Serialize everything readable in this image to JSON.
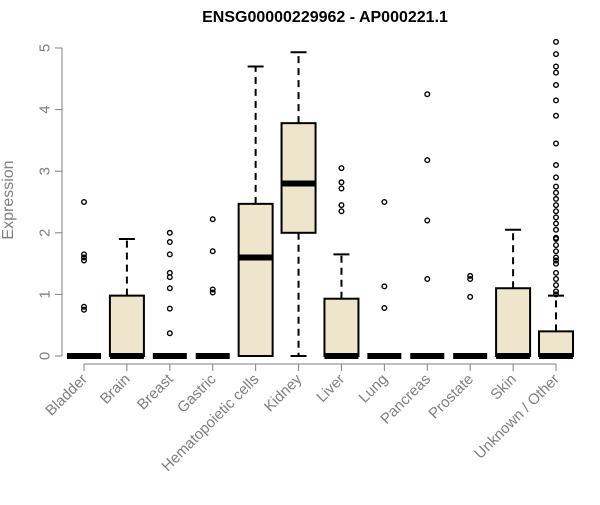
{
  "chart_data": {
    "type": "box",
    "title": "ENSG00000229962 - AP000221.1",
    "ylabel": "Expression",
    "xlabel": "",
    "ylim": [
      0,
      5.1
    ],
    "yticks": [
      0,
      1,
      2,
      3,
      4,
      5
    ],
    "grid": false,
    "legend": "none",
    "colors": {
      "box_fill": "#ede6cc",
      "box_stroke": "#000000",
      "axis": "#7f7f7f",
      "title": "#000000"
    },
    "categories": [
      "Bladder",
      "Brain",
      "Breast",
      "Gastric",
      "Hematopoietic cells",
      "Kidney",
      "Liver",
      "Lung",
      "Pancreas",
      "Prostate",
      "Skin",
      "Unknown / Other"
    ],
    "boxes": [
      {
        "name": "Bladder",
        "whisker_low": 0,
        "q1": 0,
        "median": 0,
        "q3": 0,
        "whisker_high": 0,
        "outliers": [
          0.75,
          0.8,
          1.55,
          1.6,
          1.65,
          2.5
        ]
      },
      {
        "name": "Brain",
        "whisker_low": 0,
        "q1": 0,
        "median": 0,
        "q3": 0.98,
        "whisker_high": 1.9,
        "outliers": []
      },
      {
        "name": "Breast",
        "whisker_low": 0,
        "q1": 0,
        "median": 0,
        "q3": 0,
        "whisker_high": 0,
        "outliers": [
          0.37,
          0.77,
          1.1,
          1.28,
          1.35,
          1.65,
          1.85,
          2.0
        ]
      },
      {
        "name": "Gastric",
        "whisker_low": 0,
        "q1": 0,
        "median": 0,
        "q3": 0,
        "whisker_high": 0,
        "outliers": [
          1.03,
          1.08,
          1.7,
          2.22
        ]
      },
      {
        "name": "Hematopoietic cells",
        "whisker_low": 0,
        "q1": 0,
        "median": 1.6,
        "q3": 2.47,
        "whisker_high": 4.7,
        "outliers": []
      },
      {
        "name": "Kidney",
        "whisker_low": 0,
        "q1": 2.0,
        "median": 2.8,
        "q3": 3.78,
        "whisker_high": 4.93,
        "outliers": []
      },
      {
        "name": "Liver",
        "whisker_low": 0,
        "q1": 0,
        "median": 0,
        "q3": 0.93,
        "whisker_high": 1.65,
        "outliers": [
          2.35,
          2.45,
          2.72,
          2.82,
          3.05
        ]
      },
      {
        "name": "Lung",
        "whisker_low": 0,
        "q1": 0,
        "median": 0,
        "q3": 0,
        "whisker_high": 0,
        "outliers": [
          0.78,
          1.13,
          2.5
        ]
      },
      {
        "name": "Pancreas",
        "whisker_low": 0,
        "q1": 0,
        "median": 0,
        "q3": 0,
        "whisker_high": 0,
        "outliers": [
          1.25,
          2.2,
          3.18,
          4.25
        ]
      },
      {
        "name": "Prostate",
        "whisker_low": 0,
        "q1": 0,
        "median": 0,
        "q3": 0,
        "whisker_high": 0,
        "outliers": [
          0.96,
          1.25,
          1.3
        ]
      },
      {
        "name": "Skin",
        "whisker_low": 0,
        "q1": 0,
        "median": 0,
        "q3": 1.1,
        "whisker_high": 2.05,
        "outliers": []
      },
      {
        "name": "Unknown / Other",
        "whisker_low": 0,
        "q1": 0,
        "median": 0,
        "q3": 0.4,
        "whisker_high": 0.98,
        "outliers": [
          1.0,
          1.05,
          1.15,
          1.25,
          1.35,
          1.5,
          1.55,
          1.6,
          1.7,
          1.8,
          1.9,
          1.92,
          2.05,
          2.15,
          2.25,
          2.35,
          2.45,
          2.55,
          2.65,
          2.75,
          2.9,
          3.1,
          3.45,
          3.9,
          4.15,
          4.4,
          4.6,
          4.7,
          4.9,
          5.1
        ]
      }
    ]
  }
}
